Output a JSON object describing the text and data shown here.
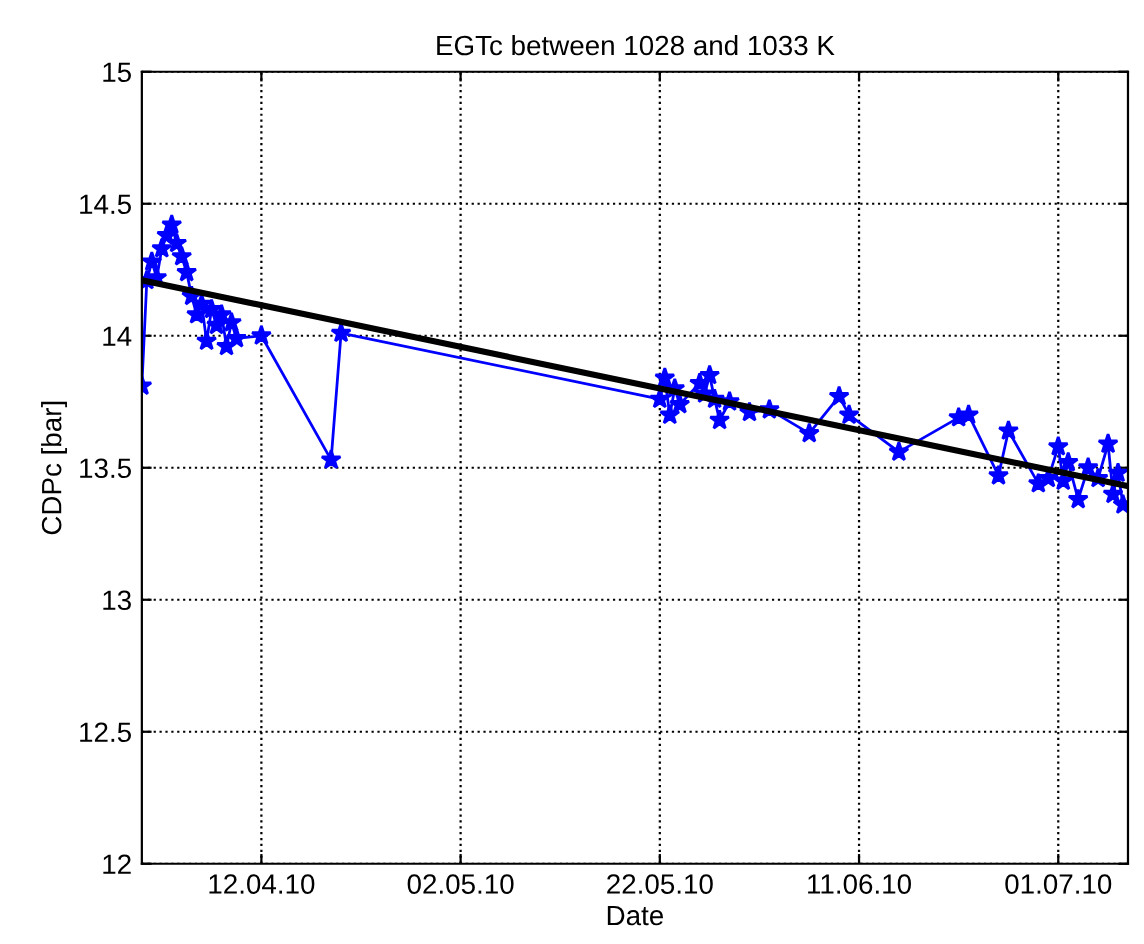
{
  "chart_data": {
    "type": "line",
    "title": "EGTc between 1028 and 1033 K",
    "xlabel": "Date",
    "ylabel": "CDPc [bar]",
    "xlim": [
      "2010-03-31",
      "2010-07-08"
    ],
    "xticks": [
      {
        "value": "2010-04-12",
        "label": "12.04.10"
      },
      {
        "value": "2010-05-02",
        "label": "02.05.10"
      },
      {
        "value": "2010-05-22",
        "label": "22.05.10"
      },
      {
        "value": "2010-06-11",
        "label": "11.06.10"
      },
      {
        "value": "2010-07-01",
        "label": "01.07.10"
      }
    ],
    "ylim": [
      12,
      15
    ],
    "yticks": [
      12,
      12.5,
      13,
      13.5,
      14,
      14.5,
      15
    ],
    "grid": true,
    "series": [
      {
        "color": "#0000ff",
        "marker": "star",
        "line_style": "solid",
        "x": [
          "2010-03-31",
          "2010-03-31T12:00",
          "2010-04-01",
          "2010-04-01T12:00",
          "2010-04-02",
          "2010-04-02T12:00",
          "2010-04-03",
          "2010-04-03T12:00",
          "2010-04-04",
          "2010-04-04T12:00",
          "2010-04-05",
          "2010-04-05T12:00",
          "2010-04-06",
          "2010-04-06T12:00",
          "2010-04-07",
          "2010-04-07T12:00",
          "2010-04-08",
          "2010-04-08T12:00",
          "2010-04-09",
          "2010-04-09T12:00",
          "2010-04-12",
          "2010-04-19",
          "2010-04-20",
          "2010-05-22",
          "2010-05-22T12:00",
          "2010-05-23",
          "2010-05-23T12:00",
          "2010-05-24",
          "2010-05-26",
          "2010-05-26T12:00",
          "2010-05-27",
          "2010-05-27T12:00",
          "2010-05-28",
          "2010-05-29",
          "2010-05-31",
          "2010-06-02",
          "2010-06-06",
          "2010-06-09",
          "2010-06-10",
          "2010-06-15",
          "2010-06-21",
          "2010-06-22",
          "2010-06-25",
          "2010-06-26",
          "2010-06-29",
          "2010-06-30",
          "2010-07-01",
          "2010-07-01T12:00",
          "2010-07-02",
          "2010-07-03",
          "2010-07-04",
          "2010-07-05",
          "2010-07-06",
          "2010-07-06T12:00",
          "2010-07-07",
          "2010-07-07T12:00"
        ],
        "values": [
          13.81,
          14.21,
          14.28,
          14.22,
          14.33,
          14.38,
          14.42,
          14.35,
          14.3,
          14.24,
          14.15,
          14.08,
          14.12,
          13.98,
          14.1,
          14.04,
          14.08,
          13.96,
          14.05,
          13.99,
          14.0,
          13.53,
          14.01,
          13.76,
          13.84,
          13.7,
          13.8,
          13.74,
          13.82,
          13.78,
          13.85,
          13.76,
          13.68,
          13.75,
          13.71,
          13.72,
          13.63,
          13.77,
          13.7,
          13.56,
          13.69,
          13.7,
          13.47,
          13.64,
          13.44,
          13.46,
          13.58,
          13.45,
          13.52,
          13.38,
          13.5,
          13.46,
          13.59,
          13.4,
          13.48,
          13.36
        ]
      },
      {
        "color": "#000000",
        "marker": "none",
        "line_style": "solid",
        "x": [
          "2010-03-31",
          "2010-07-08"
        ],
        "values": [
          14.21,
          13.43
        ]
      }
    ]
  }
}
